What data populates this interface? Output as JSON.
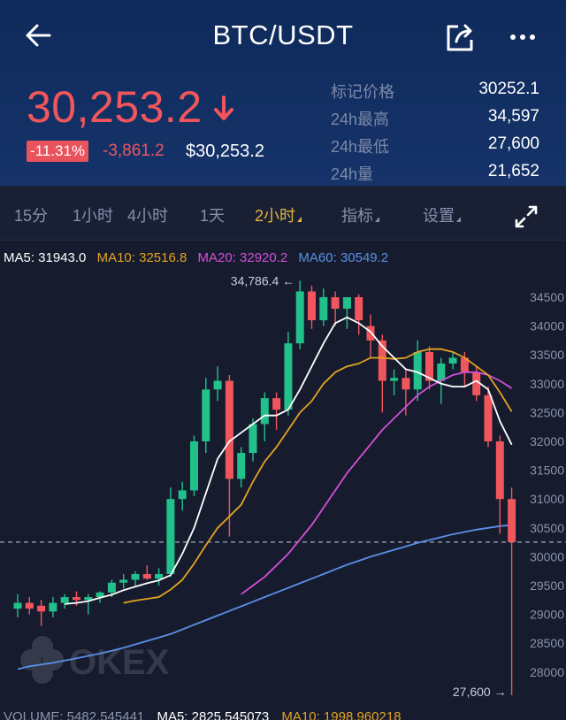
{
  "header": {
    "title": "BTC/USDT",
    "price": "30,253.2",
    "change_pct": "-11.31%",
    "change_abs": "-3,861.2",
    "usd_price": "$30,253.2",
    "stats": [
      {
        "label": "标记价格",
        "value": "30252.1"
      },
      {
        "label": "24h最高",
        "value": "34,597"
      },
      {
        "label": "24h最低",
        "value": "27,600"
      },
      {
        "label": "24h量",
        "value": "21,652"
      }
    ],
    "colors": {
      "down": "#f0565c",
      "up": "#22c08a",
      "accent": "#e5b33d"
    }
  },
  "tabs": [
    {
      "label": "15分"
    },
    {
      "label": "1小时"
    },
    {
      "label": "4小时"
    },
    {
      "label": "1天"
    },
    {
      "label": "2小时",
      "active": true
    },
    {
      "label": "指标"
    },
    {
      "label": "设置"
    }
  ],
  "ma_legend": {
    "ma5": "MA5: 31943.0",
    "ma10": "MA10: 32516.8",
    "ma20": "MA20: 32920.2",
    "ma60": "MA60: 30549.2",
    "colors": {
      "ma5": "#ffffff",
      "ma10": "#e5a321",
      "ma20": "#d44fd8",
      "ma60": "#5b8fe6"
    }
  },
  "watermark": "OKEX",
  "chart_data": {
    "type": "candlestick",
    "y_ticks": [
      "34500",
      "34000",
      "33500",
      "33000",
      "32500",
      "32000",
      "31500",
      "31000",
      "30500",
      "30000",
      "29500",
      "29000",
      "28500",
      "28000"
    ],
    "ylim": [
      27600,
      34900
    ],
    "high_label": "34,786.4 ←",
    "low_label": "27,600 →",
    "current_price_line": 30253.2,
    "candles": [
      {
        "o": 29100,
        "h": 29350,
        "l": 28950,
        "c": 29200
      },
      {
        "o": 29200,
        "h": 29300,
        "l": 29000,
        "c": 29100
      },
      {
        "o": 29150,
        "h": 29250,
        "l": 28800,
        "c": 29050
      },
      {
        "o": 29050,
        "h": 29300,
        "l": 28950,
        "c": 29200
      },
      {
        "o": 29200,
        "h": 29350,
        "l": 29100,
        "c": 29300
      },
      {
        "o": 29300,
        "h": 29400,
        "l": 29150,
        "c": 29250
      },
      {
        "o": 29250,
        "h": 29350,
        "l": 29000,
        "c": 29300
      },
      {
        "o": 29300,
        "h": 29400,
        "l": 29200,
        "c": 29380
      },
      {
        "o": 29380,
        "h": 29600,
        "l": 29300,
        "c": 29550
      },
      {
        "o": 29550,
        "h": 29700,
        "l": 29450,
        "c": 29600
      },
      {
        "o": 29600,
        "h": 29750,
        "l": 29500,
        "c": 29700
      },
      {
        "o": 29700,
        "h": 29850,
        "l": 29600,
        "c": 29620
      },
      {
        "o": 29620,
        "h": 29800,
        "l": 29500,
        "c": 29700
      },
      {
        "o": 29700,
        "h": 31200,
        "l": 29650,
        "c": 31000
      },
      {
        "o": 31000,
        "h": 31300,
        "l": 30800,
        "c": 31150
      },
      {
        "o": 31150,
        "h": 32100,
        "l": 31050,
        "c": 32000
      },
      {
        "o": 32000,
        "h": 33100,
        "l": 31800,
        "c": 32900
      },
      {
        "o": 32900,
        "h": 33300,
        "l": 32700,
        "c": 33050
      },
      {
        "o": 33050,
        "h": 33150,
        "l": 30350,
        "c": 31350
      },
      {
        "o": 31350,
        "h": 31900,
        "l": 31200,
        "c": 31800
      },
      {
        "o": 31800,
        "h": 32400,
        "l": 31650,
        "c": 32300
      },
      {
        "o": 32300,
        "h": 32850,
        "l": 32000,
        "c": 32750
      },
      {
        "o": 32750,
        "h": 32850,
        "l": 32200,
        "c": 32550
      },
      {
        "o": 32550,
        "h": 33900,
        "l": 32450,
        "c": 33700
      },
      {
        "o": 33700,
        "h": 34786,
        "l": 33600,
        "c": 34600
      },
      {
        "o": 34600,
        "h": 34700,
        "l": 33950,
        "c": 34100
      },
      {
        "o": 34100,
        "h": 34650,
        "l": 34000,
        "c": 34500
      },
      {
        "o": 34500,
        "h": 34600,
        "l": 34000,
        "c": 34300
      },
      {
        "o": 34300,
        "h": 34500,
        "l": 33950,
        "c": 34500
      },
      {
        "o": 34500,
        "h": 34550,
        "l": 33850,
        "c": 34100
      },
      {
        "o": 34000,
        "h": 34200,
        "l": 33450,
        "c": 33750
      },
      {
        "o": 33750,
        "h": 33850,
        "l": 32500,
        "c": 33050
      },
      {
        "o": 33050,
        "h": 33250,
        "l": 32800,
        "c": 33100
      },
      {
        "o": 33100,
        "h": 33250,
        "l": 32450,
        "c": 32900
      },
      {
        "o": 32900,
        "h": 33750,
        "l": 32700,
        "c": 33550
      },
      {
        "o": 33550,
        "h": 33650,
        "l": 32900,
        "c": 33050
      },
      {
        "o": 33050,
        "h": 33450,
        "l": 32650,
        "c": 33350
      },
      {
        "o": 33350,
        "h": 33550,
        "l": 33250,
        "c": 33450
      },
      {
        "o": 33450,
        "h": 33550,
        "l": 32950,
        "c": 33200
      },
      {
        "o": 33200,
        "h": 33300,
        "l": 32700,
        "c": 32800
      },
      {
        "o": 32800,
        "h": 32950,
        "l": 31900,
        "c": 32000
      },
      {
        "o": 32000,
        "h": 32100,
        "l": 30400,
        "c": 31000
      },
      {
        "o": 31000,
        "h": 31200,
        "l": 27600,
        "c": 30253
      }
    ],
    "ma5": [
      null,
      null,
      null,
      null,
      29180,
      29200,
      29230,
      29290,
      29340,
      29420,
      29480,
      29540,
      29590,
      29680,
      30050,
      30500,
      31100,
      31700,
      32000,
      32150,
      32300,
      32450,
      32450,
      32550,
      32900,
      33300,
      33700,
      34050,
      34150,
      34050,
      33900,
      33650,
      33450,
      33250,
      33200,
      33100,
      33000,
      32950,
      32950,
      33050,
      32900,
      32350,
      31943
    ],
    "ma10": [
      null,
      null,
      null,
      null,
      null,
      null,
      null,
      null,
      null,
      29200,
      29240,
      29270,
      29300,
      29430,
      29600,
      29880,
      30200,
      30500,
      30700,
      30900,
      31300,
      31650,
      31900,
      32200,
      32500,
      32700,
      33000,
      33200,
      33300,
      33350,
      33450,
      33450,
      33430,
      33450,
      33550,
      33600,
      33600,
      33550,
      33450,
      33300,
      33150,
      32850,
      32517
    ],
    "ma20": [
      null,
      null,
      null,
      null,
      null,
      null,
      null,
      null,
      null,
      null,
      null,
      null,
      null,
      null,
      null,
      null,
      null,
      null,
      null,
      29350,
      29500,
      29650,
      29850,
      30050,
      30300,
      30550,
      30850,
      31150,
      31450,
      31700,
      31950,
      32200,
      32400,
      32600,
      32800,
      32950,
      33050,
      33150,
      33200,
      33200,
      33150,
      33050,
      32920
    ],
    "ma60": [
      28050,
      28100,
      28130,
      28160,
      28200,
      28240,
      28280,
      28320,
      28370,
      28420,
      28480,
      28540,
      28600,
      28660,
      28740,
      28820,
      28900,
      28980,
      29060,
      29140,
      29220,
      29300,
      29380,
      29460,
      29540,
      29620,
      29700,
      29780,
      29860,
      29930,
      30000,
      30060,
      30120,
      30180,
      30240,
      30290,
      30340,
      30390,
      30430,
      30470,
      30500,
      30530,
      30549
    ]
  },
  "volume_legend": {
    "volume": "VOLUME: 5482.545441",
    "ma5": "MA5: 2825.545073",
    "ma10": "MA10: 1998.960218"
  }
}
